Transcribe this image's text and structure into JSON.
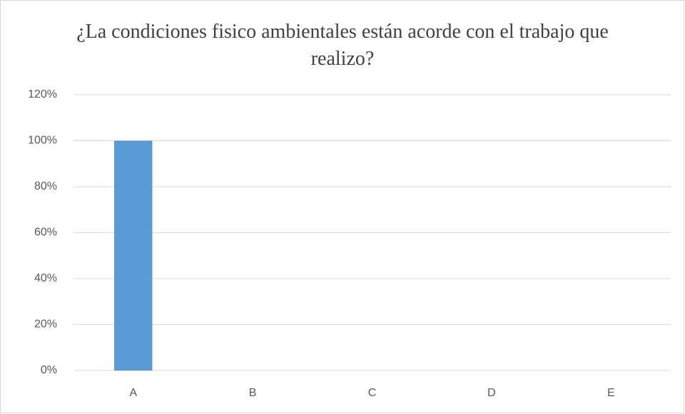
{
  "chart_data": {
    "type": "bar",
    "title": "¿La condiciones fisico ambientales están acorde con el trabajo que realizo?",
    "categories": [
      "A",
      "B",
      "C",
      "D",
      "E"
    ],
    "values": [
      100,
      0,
      0,
      0,
      0
    ],
    "color": "#5b9bd5",
    "ylim": [
      0,
      120
    ],
    "yticks": [
      {
        "value": 0,
        "label": "0%"
      },
      {
        "value": 20,
        "label": "20%"
      },
      {
        "value": 40,
        "label": "40%"
      },
      {
        "value": 60,
        "label": "60%"
      },
      {
        "value": 80,
        "label": "80%"
      },
      {
        "value": 100,
        "label": "100%"
      },
      {
        "value": 120,
        "label": "120%"
      }
    ],
    "grid": true
  }
}
